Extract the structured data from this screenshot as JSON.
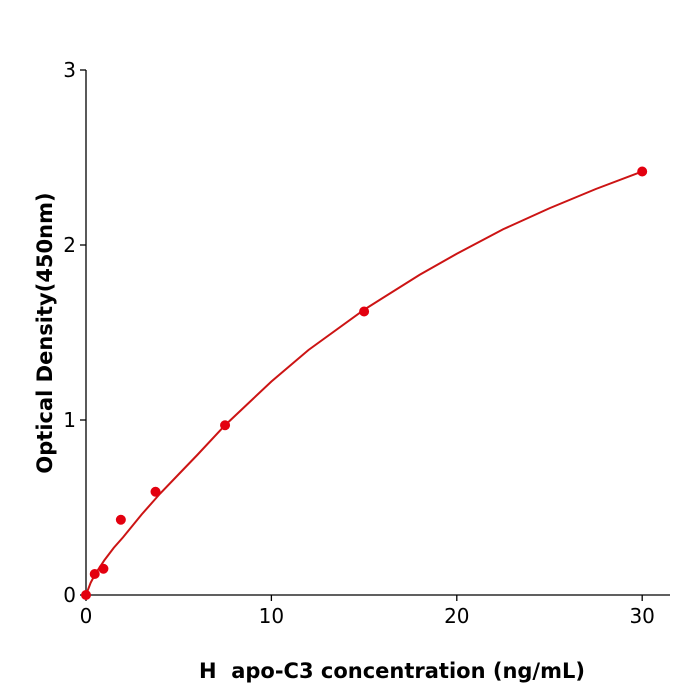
{
  "chart_data": {
    "type": "scatter",
    "xlabel": "H  apo-C3 concentration (ng/mL)",
    "ylabel": "Optical Density(450nm)",
    "xlim": [
      0,
      31.5
    ],
    "ylim": [
      0,
      3
    ],
    "xticks": [
      0,
      10,
      20,
      30
    ],
    "yticks": [
      0,
      1,
      2,
      3
    ],
    "series": [
      {
        "type": "scatter",
        "color": "#e3000f",
        "x": [
          0,
          0.47,
          0.94,
          1.88,
          3.75,
          7.5,
          15,
          30
        ],
        "values": [
          0.0,
          0.12,
          0.15,
          0.43,
          0.59,
          0.97,
          1.62,
          2.42
        ]
      },
      {
        "type": "line",
        "color": "#cc1414",
        "x": [
          0,
          0.25,
          0.5,
          1,
          1.5,
          2,
          3,
          4,
          5,
          6,
          7.5,
          9,
          10,
          12,
          15,
          18,
          20,
          22.5,
          25,
          27.5,
          30
        ],
        "values": [
          0.0,
          0.07,
          0.12,
          0.2,
          0.27,
          0.33,
          0.46,
          0.58,
          0.69,
          0.8,
          0.97,
          1.12,
          1.22,
          1.4,
          1.63,
          1.83,
          1.95,
          2.09,
          2.21,
          2.32,
          2.42
        ]
      }
    ]
  }
}
